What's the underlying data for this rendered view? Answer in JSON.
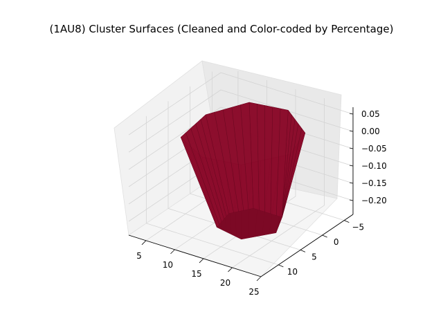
{
  "chart_data": {
    "type": "surface3d",
    "title": "(1AU8) Cluster Surfaces (Cleaned and Color-coded by Percentage)",
    "xlabel": "",
    "ylabel": "",
    "zlabel": "",
    "x_ticks": [
      5,
      10,
      15,
      20,
      25
    ],
    "y_ticks": [
      -5,
      0,
      5,
      10
    ],
    "z_ticks": [
      0.05,
      0.0,
      -0.05,
      -0.1,
      -0.15,
      -0.2
    ],
    "x_tick_labels": [
      "5",
      "10",
      "15",
      "20",
      "25"
    ],
    "y_tick_labels": [
      "−5",
      "0",
      "5",
      "10"
    ],
    "z_tick_labels": [
      "0.05",
      "0.00",
      "−0.05",
      "−0.10",
      "−0.15",
      "−0.20"
    ],
    "xlim": [
      2,
      25
    ],
    "ylim": [
      -7,
      14
    ],
    "zlim": [
      -0.24,
      0.07
    ],
    "grid": true,
    "surface_color": "#8b0a2a",
    "surface": {
      "description_free": true,
      "rim_z": 0.04,
      "floor_z": -0.225,
      "rim_polygon": [
        [
          8,
          10
        ],
        [
          14,
          13
        ],
        [
          20,
          12
        ],
        [
          24,
          6
        ],
        [
          22,
          0
        ],
        [
          16,
          -4
        ],
        [
          10,
          -3
        ],
        [
          7,
          3
        ]
      ],
      "floor_polygon": [
        [
          12,
          7
        ],
        [
          17,
          8
        ],
        [
          20,
          4
        ],
        [
          18,
          0
        ],
        [
          13,
          0
        ],
        [
          11,
          3
        ]
      ]
    }
  }
}
